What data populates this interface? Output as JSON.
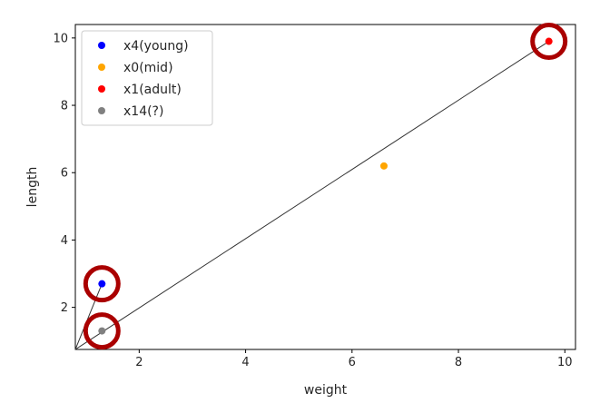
{
  "chart_data": {
    "type": "scatter",
    "xlabel": "weight",
    "ylabel": "length",
    "xlim": [
      0.8,
      10.2
    ],
    "ylim": [
      0.75,
      10.4
    ],
    "xticks": [
      2,
      4,
      6,
      8,
      10
    ],
    "yticks": [
      2,
      4,
      6,
      8,
      10
    ],
    "grid": false,
    "legend_position": "top-left",
    "series": [
      {
        "name": "x4(young)",
        "color": "#0000ff",
        "points": [
          [
            1.3,
            2.7
          ]
        ]
      },
      {
        "name": "x0(mid)",
        "color": "#ffa500",
        "points": [
          [
            6.6,
            6.2
          ]
        ]
      },
      {
        "name": "x1(adult)",
        "color": "#ff0000",
        "points": [
          [
            9.7,
            9.9
          ]
        ]
      },
      {
        "name": "x14(?)",
        "color": "#808080",
        "points": [
          [
            1.3,
            1.3
          ]
        ]
      }
    ],
    "lines": [
      {
        "color": "#333333",
        "from": [
          0.8,
          0.75
        ],
        "to": [
          9.7,
          9.9
        ]
      },
      {
        "color": "#333333",
        "from": [
          0.8,
          0.75
        ],
        "to": [
          1.3,
          2.7
        ]
      }
    ],
    "highlights": [
      {
        "color": "#aa0000",
        "point": [
          9.7,
          9.9
        ]
      },
      {
        "color": "#aa0000",
        "point": [
          1.3,
          2.7
        ]
      },
      {
        "color": "#aa0000",
        "point": [
          1.3,
          1.3
        ]
      }
    ]
  }
}
